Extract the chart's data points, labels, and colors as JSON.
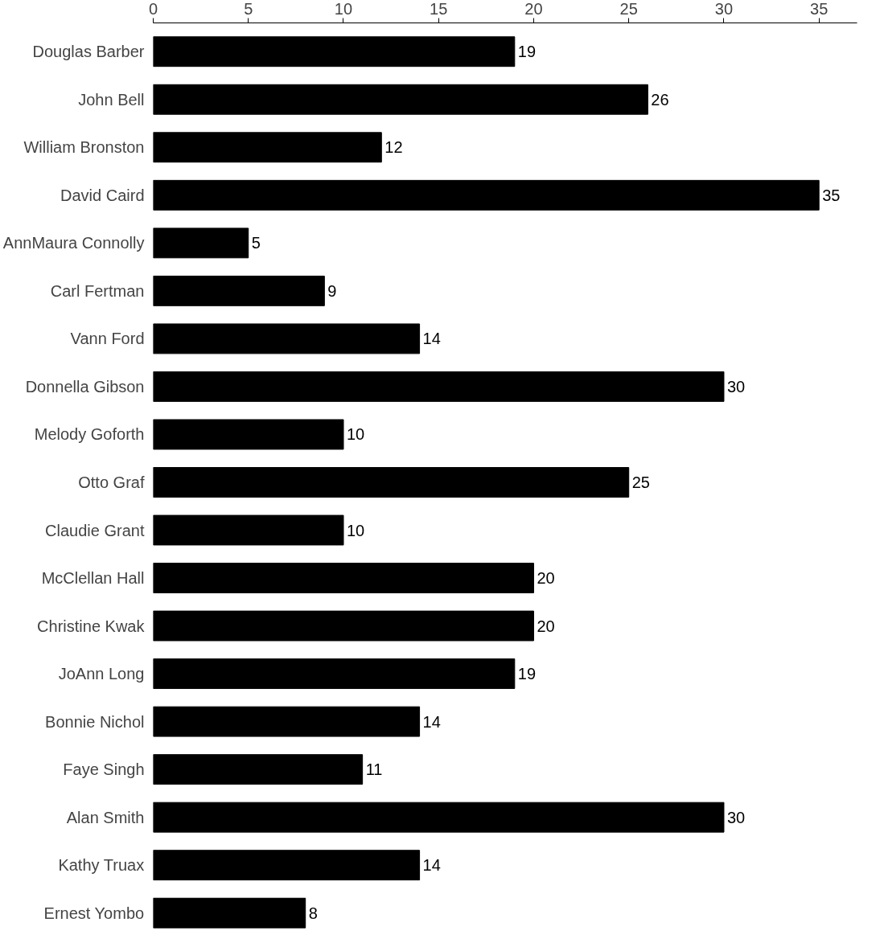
{
  "chart_data": {
    "type": "bar",
    "orientation": "horizontal",
    "categories": [
      "Douglas Barber",
      "John Bell",
      "William Bronston",
      "David Caird",
      "AnnMaura Connolly",
      "Carl Fertman",
      "Vann Ford",
      "Donnella Gibson",
      "Melody Goforth",
      "Otto Graf",
      "Claudie Grant",
      "McClellan Hall",
      "Christine Kwak",
      "JoAnn Long",
      "Bonnie Nichol",
      "Faye Singh",
      "Alan Smith",
      "Kathy Truax",
      "Ernest Yombo"
    ],
    "values": [
      19,
      26,
      12,
      35,
      5,
      9,
      14,
      30,
      10,
      25,
      10,
      20,
      20,
      19,
      14,
      11,
      30,
      14,
      8
    ],
    "color": "#000000",
    "xlim": [
      0,
      37
    ],
    "xticks": [
      0,
      5,
      10,
      15,
      20,
      25,
      30,
      35
    ],
    "data_labels": true,
    "grid": false
  }
}
